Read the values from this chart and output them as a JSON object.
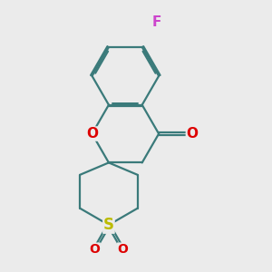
{
  "bg_color": "#ebebeb",
  "bond_color": "#3a7a7a",
  "bond_width": 1.6,
  "atom_F": {
    "label": "F",
    "color": "#cc44cc",
    "fontsize": 11
  },
  "atom_O_carbonyl": {
    "label": "O",
    "color": "#dd0000",
    "fontsize": 11
  },
  "atom_O_ring": {
    "label": "O",
    "color": "#dd0000",
    "fontsize": 11
  },
  "atom_S": {
    "label": "S",
    "color": "#bbbb00",
    "fontsize": 12
  },
  "atom_O_sulfone": {
    "label": "O",
    "color": "#dd0000",
    "fontsize": 10
  },
  "figsize": [
    3.0,
    3.0
  ],
  "dpi": 100,
  "xlim": [
    -1.4,
    1.8
  ],
  "ylim": [
    -2.0,
    3.2
  ]
}
